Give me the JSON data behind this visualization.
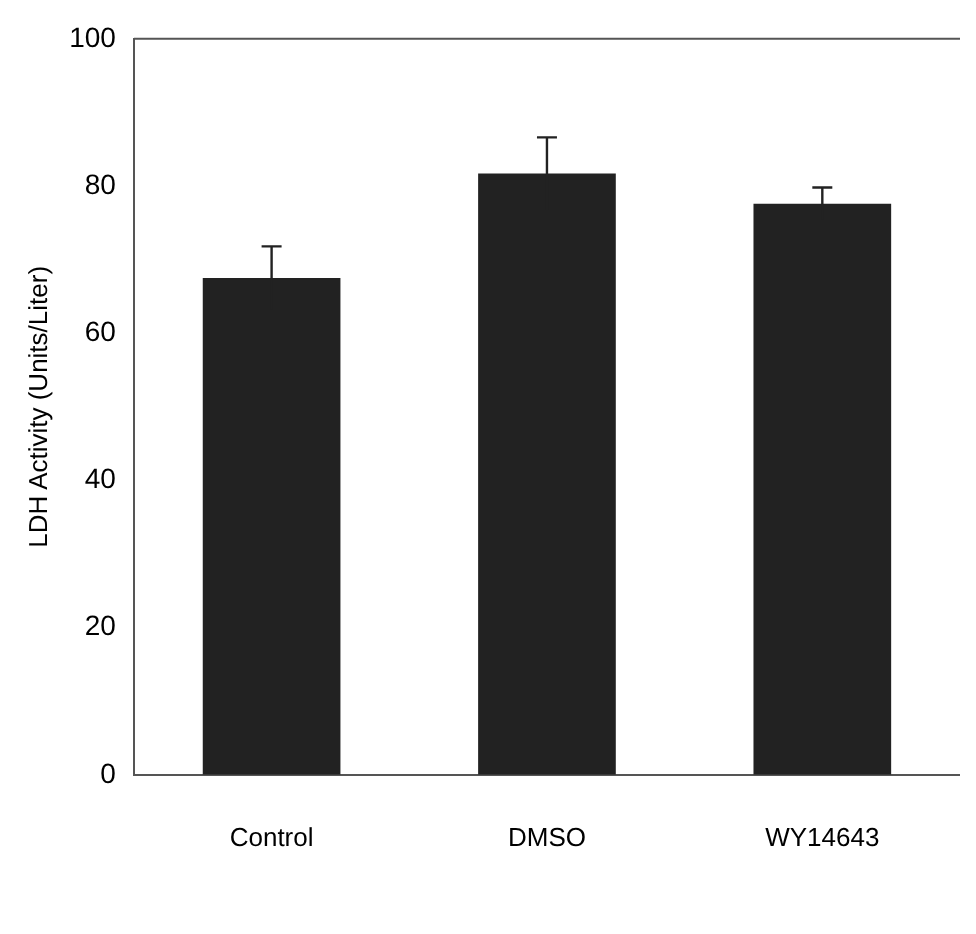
{
  "chart_data": {
    "type": "bar",
    "ylabel": "LDH Activity (Units/Liter)",
    "categories": [
      "Control",
      "DMSO",
      "WY14643"
    ],
    "values": [
      67.5,
      81.7,
      77.6
    ],
    "errors": [
      4.3,
      4.9,
      2.2
    ],
    "color": "#222222",
    "ylim": [
      0,
      100
    ],
    "yticks": [
      0,
      20,
      40,
      60,
      80,
      100
    ],
    "grid": false,
    "legend": false
  }
}
